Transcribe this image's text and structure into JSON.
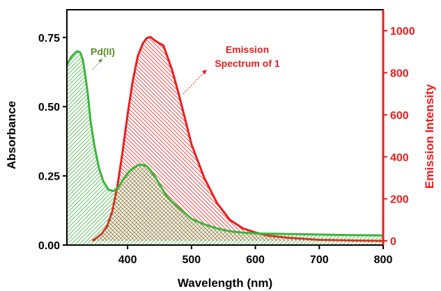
{
  "chart_data": {
    "type": "area",
    "xlabel": "Wavelength (nm)",
    "ylabel_left": "Absorbance",
    "ylabel_right": "Emission Intensity",
    "xlim": [
      305,
      800
    ],
    "ylim_left": [
      0,
      0.85
    ],
    "ylim_right": [
      -20,
      1100
    ],
    "x_ticks": [
      400,
      500,
      600,
      700,
      800
    ],
    "y_left_ticks": [
      "0.00",
      "0.25",
      "0.50",
      "0.75"
    ],
    "y_right_ticks": [
      "0",
      "200",
      "400",
      "600",
      "800",
      "1000"
    ],
    "series": [
      {
        "name": "Pd(II)",
        "axis": "left",
        "color": "#3cb43c",
        "x": [
          305,
          312,
          318,
          322,
          326,
          330,
          334,
          338,
          342,
          348,
          355,
          362,
          370,
          378,
          386,
          394,
          402,
          410,
          418,
          424,
          430,
          436,
          442,
          450,
          460,
          470,
          480,
          490,
          500,
          520,
          540,
          560,
          580,
          600,
          650,
          700,
          750,
          800
        ],
        "y": [
          0.65,
          0.68,
          0.695,
          0.7,
          0.695,
          0.67,
          0.61,
          0.54,
          0.45,
          0.36,
          0.28,
          0.23,
          0.2,
          0.195,
          0.21,
          0.24,
          0.265,
          0.28,
          0.29,
          0.29,
          0.285,
          0.27,
          0.25,
          0.22,
          0.18,
          0.155,
          0.135,
          0.115,
          0.095,
          0.075,
          0.06,
          0.05,
          0.045,
          0.042,
          0.04,
          0.038,
          0.036,
          0.035
        ]
      },
      {
        "name": "Emission Spectrum of 1",
        "axis": "right",
        "color": "#ee1c1c",
        "x": [
          345,
          352,
          360,
          368,
          376,
          384,
          392,
          400,
          408,
          416,
          424,
          430,
          436,
          442,
          450,
          456,
          462,
          470,
          480,
          490,
          500,
          520,
          540,
          560,
          580,
          600,
          620,
          650,
          700,
          750,
          800
        ],
        "y": [
          0,
          15,
          35,
          70,
          140,
          260,
          420,
          600,
          760,
          880,
          940,
          965,
          970,
          955,
          940,
          930,
          880,
          810,
          700,
          580,
          460,
          300,
          180,
          100,
          60,
          40,
          25,
          15,
          5,
          2,
          0
        ]
      }
    ],
    "annotations": [
      {
        "text": "Pd(II)",
        "color": "#5a8a2a"
      },
      {
        "text": "Emission",
        "color": "#ee1c1c"
      },
      {
        "text": "Spectrum of 1",
        "color": "#ee1c1c"
      }
    ]
  }
}
